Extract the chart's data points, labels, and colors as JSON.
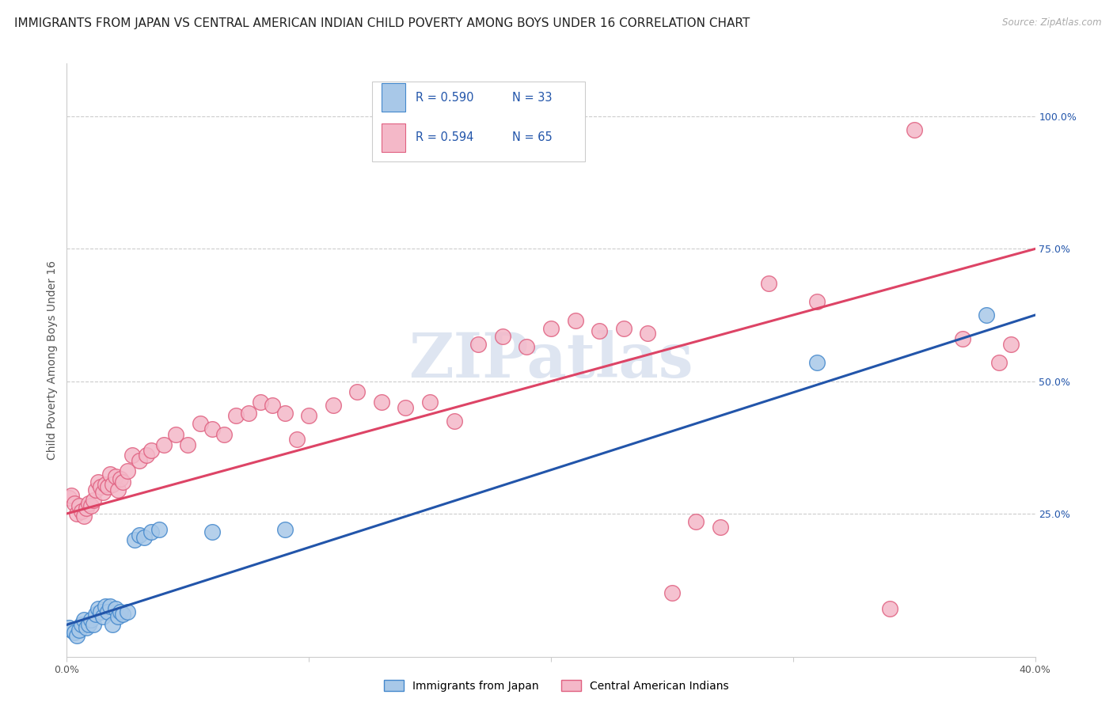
{
  "title": "IMMIGRANTS FROM JAPAN VS CENTRAL AMERICAN INDIAN CHILD POVERTY AMONG BOYS UNDER 16 CORRELATION CHART",
  "source": "Source: ZipAtlas.com",
  "ylabel": "Child Poverty Among Boys Under 16",
  "xlim": [
    0.0,
    0.4
  ],
  "ylim": [
    -0.02,
    1.1
  ],
  "xticks": [
    0.0,
    0.1,
    0.2,
    0.3,
    0.4
  ],
  "xticklabels": [
    "0.0%",
    "",
    "",
    "",
    "40.0%"
  ],
  "yticks_right": [
    0.25,
    0.5,
    0.75,
    1.0
  ],
  "yticklabels_right": [
    "25.0%",
    "50.0%",
    "75.0%",
    "100.0%"
  ],
  "legend_r_blue": "R = 0.590",
  "legend_n_blue": "N = 33",
  "legend_r_pink": "R = 0.594",
  "legend_n_pink": "N = 65",
  "legend_label_blue": "Immigrants from Japan",
  "legend_label_pink": "Central American Indians",
  "watermark": "ZIPatlas",
  "blue_color": "#a8c8e8",
  "pink_color": "#f4b8c8",
  "blue_edge_color": "#4488cc",
  "pink_edge_color": "#e06080",
  "blue_line_color": "#2255aa",
  "pink_line_color": "#dd4466",
  "blue_scatter": [
    [
      0.001,
      0.035
    ],
    [
      0.002,
      0.03
    ],
    [
      0.003,
      0.025
    ],
    [
      0.004,
      0.02
    ],
    [
      0.005,
      0.03
    ],
    [
      0.006,
      0.04
    ],
    [
      0.007,
      0.05
    ],
    [
      0.008,
      0.035
    ],
    [
      0.009,
      0.04
    ],
    [
      0.01,
      0.05
    ],
    [
      0.011,
      0.04
    ],
    [
      0.012,
      0.06
    ],
    [
      0.013,
      0.07
    ],
    [
      0.014,
      0.065
    ],
    [
      0.015,
      0.055
    ],
    [
      0.016,
      0.075
    ],
    [
      0.017,
      0.065
    ],
    [
      0.018,
      0.075
    ],
    [
      0.019,
      0.04
    ],
    [
      0.02,
      0.07
    ],
    [
      0.021,
      0.055
    ],
    [
      0.022,
      0.065
    ],
    [
      0.023,
      0.06
    ],
    [
      0.025,
      0.065
    ],
    [
      0.028,
      0.2
    ],
    [
      0.03,
      0.21
    ],
    [
      0.032,
      0.205
    ],
    [
      0.035,
      0.215
    ],
    [
      0.038,
      0.22
    ],
    [
      0.06,
      0.215
    ],
    [
      0.09,
      0.22
    ],
    [
      0.31,
      0.535
    ],
    [
      0.38,
      0.625
    ]
  ],
  "pink_scatter": [
    [
      0.001,
      0.28
    ],
    [
      0.002,
      0.285
    ],
    [
      0.003,
      0.27
    ],
    [
      0.004,
      0.25
    ],
    [
      0.005,
      0.265
    ],
    [
      0.006,
      0.255
    ],
    [
      0.007,
      0.245
    ],
    [
      0.008,
      0.26
    ],
    [
      0.009,
      0.27
    ],
    [
      0.01,
      0.265
    ],
    [
      0.011,
      0.275
    ],
    [
      0.012,
      0.295
    ],
    [
      0.013,
      0.31
    ],
    [
      0.014,
      0.3
    ],
    [
      0.015,
      0.29
    ],
    [
      0.016,
      0.305
    ],
    [
      0.017,
      0.3
    ],
    [
      0.018,
      0.325
    ],
    [
      0.019,
      0.305
    ],
    [
      0.02,
      0.32
    ],
    [
      0.021,
      0.295
    ],
    [
      0.022,
      0.315
    ],
    [
      0.023,
      0.31
    ],
    [
      0.025,
      0.33
    ],
    [
      0.027,
      0.36
    ],
    [
      0.03,
      0.35
    ],
    [
      0.033,
      0.36
    ],
    [
      0.035,
      0.37
    ],
    [
      0.04,
      0.38
    ],
    [
      0.045,
      0.4
    ],
    [
      0.05,
      0.38
    ],
    [
      0.055,
      0.42
    ],
    [
      0.06,
      0.41
    ],
    [
      0.065,
      0.4
    ],
    [
      0.07,
      0.435
    ],
    [
      0.075,
      0.44
    ],
    [
      0.08,
      0.46
    ],
    [
      0.085,
      0.455
    ],
    [
      0.09,
      0.44
    ],
    [
      0.095,
      0.39
    ],
    [
      0.1,
      0.435
    ],
    [
      0.11,
      0.455
    ],
    [
      0.12,
      0.48
    ],
    [
      0.13,
      0.46
    ],
    [
      0.14,
      0.45
    ],
    [
      0.15,
      0.46
    ],
    [
      0.16,
      0.425
    ],
    [
      0.17,
      0.57
    ],
    [
      0.18,
      0.585
    ],
    [
      0.19,
      0.565
    ],
    [
      0.2,
      0.6
    ],
    [
      0.21,
      0.615
    ],
    [
      0.22,
      0.595
    ],
    [
      0.23,
      0.6
    ],
    [
      0.24,
      0.59
    ],
    [
      0.25,
      0.1
    ],
    [
      0.26,
      0.235
    ],
    [
      0.27,
      0.225
    ],
    [
      0.29,
      0.685
    ],
    [
      0.31,
      0.65
    ],
    [
      0.34,
      0.07
    ],
    [
      0.35,
      0.975
    ],
    [
      0.37,
      0.58
    ],
    [
      0.385,
      0.535
    ],
    [
      0.39,
      0.57
    ]
  ],
  "blue_line": {
    "x0": 0.0,
    "y0": 0.04,
    "x1": 0.4,
    "y1": 0.625
  },
  "pink_line": {
    "x0": 0.0,
    "y0": 0.25,
    "x1": 0.4,
    "y1": 0.75
  },
  "grid_color": "#cccccc",
  "background_color": "#ffffff",
  "title_fontsize": 11,
  "axis_label_fontsize": 10,
  "tick_fontsize": 9,
  "watermark_color": "#c8d4e8",
  "watermark_fontsize": 56
}
